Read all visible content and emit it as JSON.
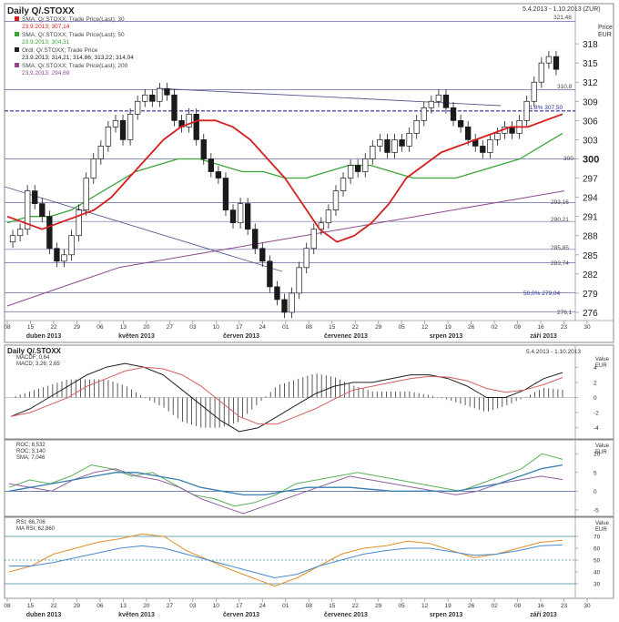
{
  "colors": {
    "sma30": "#d81e1e",
    "sma50": "#3aa63a",
    "sma200": "#8e4a8e",
    "candle": "#1a1a1a",
    "hline": "#6a6aa8",
    "trend": "#5a5a90",
    "fib": "#2a2aa0",
    "macd": "#222222",
    "macdSignal": "#d86060",
    "roc1": "#5ab05a",
    "roc2": "#9060a0",
    "rocSma": "#3a7fb0",
    "rsi": "#e0902a",
    "rsiMa": "#4a8ad0"
  },
  "panels": [
    {
      "title": "Daily Q/.STOXX",
      "range": "5.4.2013 - 1.10.2013 (ZUR)",
      "price_label_1": "Price",
      "price_label_2": "EUR",
      "legend": [
        {
          "line1": "SMA; Q/.STOXX; Trade Price(Last); 30",
          "line2": "23.9.2013; 307,14"
        },
        {
          "line1": "SMA; Q/.STOXX; Trade Price(Last); 50",
          "line2": "23.9.2013; 304,31"
        },
        {
          "line1": "Ordi; Q/.STOXX; Trade Price",
          "line2": "23.9.2013; 314,21; 314,86; 313,22; 314,04"
        },
        {
          "line1": "SMA; Q/.STOXX; Trade Price(Last); 200",
          "line2": "23.9.2013; 294,69"
        }
      ],
      "level_labels": {
        "l321": "321,48",
        "l310": "310,8",
        "fib61": "61,8%  307,50",
        "l300": "300",
        "l293": "293,16",
        "l290": "290,21",
        "l285": "285,85",
        "l283": "283,74",
        "fib50": "50,0%  279,04",
        "l276": "276,1"
      }
    },
    {
      "title": "Daily Q/.STOXX",
      "range": "5.4.2013 - 1.10.2013",
      "value_label_1": "Value",
      "value_label_2": "EUR",
      "legend": [
        "MACDF; 0,64",
        "MACD; 3,26; 2,65"
      ]
    },
    {
      "value_label_1": "Value",
      "value_label_2": "EUR",
      "legend": [
        "ROC; 8,532",
        "ROC; 3,140",
        "SMA; 7,046"
      ]
    },
    {
      "value_label_1": "Value",
      "value_label_2": "EUR",
      "legend": [
        "RSI; 66,706",
        "MA RSI; 62,860"
      ]
    }
  ],
  "x_ticks": [
    "08",
    "15",
    "22",
    "29",
    "06",
    "13",
    "20",
    "27",
    "03",
    "10",
    "17",
    "24",
    "01",
    "08",
    "15",
    "22",
    "29",
    "05",
    "12",
    "19",
    "26",
    "02",
    "09",
    "16",
    "23",
    "30"
  ],
  "x_ticks_bottom": [
    "08",
    "15",
    "22",
    "29",
    "06",
    "13",
    "20",
    "27",
    "03",
    "10",
    "17",
    "24",
    "01",
    "08",
    "15",
    "22",
    "29",
    "05",
    "12",
    "19",
    "26",
    "02",
    "09",
    "16",
    "23",
    "30"
  ],
  "month_labels": [
    "duben 2013",
    "květen 2013",
    "červen 2013",
    "červenec 2013",
    "srpen 2013",
    "září 2013"
  ],
  "chart_data": [
    {
      "type": "line",
      "title": "Daily Q/.STOXX",
      "ylabel": "Price EUR",
      "ylim": [
        275,
        322
      ],
      "yticks": [
        276,
        279,
        282,
        285,
        288,
        291,
        294,
        297,
        300,
        303,
        306,
        309,
        312,
        315,
        318
      ],
      "candles_close_approx": [
        288,
        289,
        295,
        293,
        291,
        286,
        284,
        285,
        288,
        292,
        297,
        300,
        302,
        305,
        306,
        303,
        307,
        309,
        310,
        309,
        311,
        310,
        306,
        305,
        307,
        303,
        300,
        298,
        297,
        292,
        290,
        293,
        289,
        286,
        284,
        280,
        278,
        276,
        279,
        283,
        286,
        289,
        290,
        292,
        295,
        297,
        299,
        298,
        300,
        302,
        303,
        301,
        303,
        302,
        304,
        306,
        308,
        309,
        310,
        308,
        306,
        305,
        303,
        302,
        301,
        303,
        304,
        305,
        304,
        306,
        309,
        312,
        315,
        316,
        314
      ],
      "series": [
        {
          "name": "SMA 30",
          "values": [
            291,
            290,
            289,
            290,
            291,
            292,
            294,
            297,
            300,
            303,
            305,
            306,
            306,
            305,
            303,
            300,
            297,
            293,
            289,
            287,
            288,
            290,
            293,
            297,
            299,
            301,
            302,
            303,
            304,
            305,
            305,
            306,
            307
          ]
        },
        {
          "name": "SMA 50",
          "values": [
            290,
            291,
            291,
            292,
            294,
            296,
            298,
            299,
            300,
            300,
            299,
            298,
            298,
            297,
            297,
            298,
            299,
            299,
            298,
            297,
            297,
            297,
            298,
            299,
            300,
            302,
            304
          ]
        },
        {
          "name": "SMA 200",
          "values": [
            277,
            279,
            281,
            283,
            284,
            285,
            286,
            287,
            288,
            289,
            290,
            291,
            292,
            293,
            294,
            295
          ]
        }
      ],
      "hlines": [
        321.48,
        310.8,
        307.5,
        300,
        293.16,
        290.21,
        285.85,
        283.74,
        279.04,
        276.1
      ]
    },
    {
      "type": "line",
      "title": "MACD",
      "ylim": [
        -5,
        5
      ],
      "yticks": [
        4,
        2,
        0,
        -2,
        -4
      ],
      "series": [
        {
          "name": "MACD",
          "values": [
            -2.5,
            -1.5,
            0,
            1.5,
            3,
            4,
            4.5,
            4,
            3,
            1,
            -1,
            -3,
            -4.5,
            -4,
            -2.5,
            -1,
            0.5,
            1.5,
            2,
            2,
            2.5,
            3,
            3,
            2.5,
            1.5,
            0,
            0,
            1,
            2.5,
            3.3
          ]
        },
        {
          "name": "Signal",
          "values": [
            -2.5,
            -2,
            -1,
            0,
            1.5,
            2.5,
            3.5,
            4,
            3.8,
            3,
            1.5,
            -0.5,
            -2.5,
            -3.5,
            -3.5,
            -2.5,
            -1.5,
            -0.2,
            1,
            1.5,
            2,
            2.5,
            2.8,
            2.7,
            2.2,
            1.2,
            0.7,
            1,
            1.7,
            2.65
          ]
        }
      ]
    },
    {
      "type": "line",
      "title": "ROC",
      "ylim": [
        -6,
        12
      ],
      "yticks": [
        10,
        5,
        0,
        -5
      ],
      "series": [
        {
          "name": "ROC 1",
          "values": [
            1,
            3,
            2,
            4,
            7,
            6,
            4,
            5,
            2,
            -1,
            -2,
            -4,
            -3,
            -1,
            2,
            3,
            4,
            5,
            4,
            3,
            2,
            1,
            0,
            2,
            4,
            6,
            10,
            8.5
          ]
        },
        {
          "name": "ROC 2",
          "values": [
            2,
            1,
            0,
            3,
            5,
            6,
            4,
            3,
            1,
            -2,
            -4,
            -6,
            -4,
            -2,
            0,
            2,
            4,
            3,
            2,
            1,
            0,
            -1,
            0,
            2,
            3,
            4,
            3.1
          ]
        },
        {
          "name": "SMA",
          "values": [
            0,
            1,
            2,
            3,
            4,
            5,
            5,
            4,
            3,
            1,
            0,
            -1,
            -1,
            0,
            1,
            1,
            1,
            0.5,
            0,
            0,
            0,
            0,
            1,
            2,
            4,
            6,
            7
          ]
        }
      ]
    },
    {
      "type": "line",
      "title": "RSI",
      "ylim": [
        20,
        80
      ],
      "yticks": [
        70,
        60,
        50,
        40,
        30
      ],
      "series": [
        {
          "name": "RSI",
          "values": [
            40,
            45,
            55,
            60,
            65,
            68,
            72,
            70,
            58,
            50,
            42,
            35,
            28,
            35,
            45,
            55,
            60,
            62,
            66,
            64,
            58,
            52,
            55,
            60,
            65,
            66.7
          ]
        },
        {
          "name": "MA RSI",
          "values": [
            45,
            45,
            48,
            52,
            56,
            60,
            62,
            60,
            55,
            50,
            45,
            40,
            35,
            38,
            45,
            50,
            55,
            58,
            60,
            60,
            57,
            54,
            55,
            58,
            62,
            62.9
          ]
        }
      ]
    }
  ]
}
